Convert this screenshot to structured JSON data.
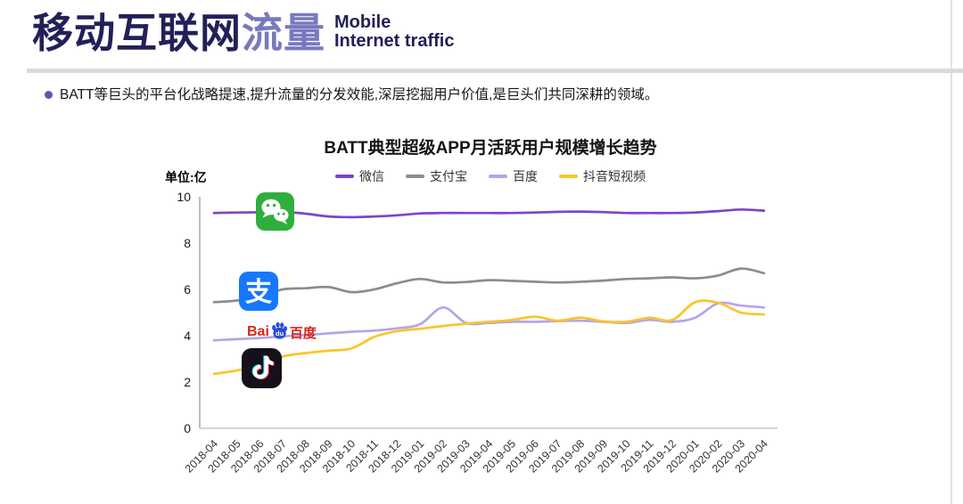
{
  "header": {
    "title_cn_dark": "移动互联网",
    "title_cn_accent": "流量",
    "title_en_line1": "Mobile",
    "title_en_line2": "Internet traffic"
  },
  "bullet": {
    "text": "BATT等巨头的平台化战略提速,提升流量的分发效能,深层挖掘用户价值,是巨头们共同深耕的领域。"
  },
  "colors": {
    "title_dark": "#232058",
    "title_accent": "#7779BF",
    "divider": "#DADADA",
    "bullet_dot": "#5E56AD",
    "axis": "#9B9B9B",
    "tick_text": "#333333"
  },
  "icon_labels": {
    "alipay_glyph": "支",
    "baidu_bai": "Bai",
    "baidu_du": "du",
    "baidu_cn": "百度"
  },
  "chart_data": {
    "type": "line",
    "title": "BATT典型超级APP月活跃用户规模增长趋势",
    "unit_label": "单位:亿",
    "xlabel": "",
    "ylabel": "",
    "ylim": [
      0,
      10
    ],
    "yticks": [
      0,
      2,
      4,
      6,
      8,
      10
    ],
    "grid": false,
    "legend_position": "top-center",
    "x": [
      "2018-04",
      "2018-05",
      "2018-06",
      "2018-07",
      "2018-08",
      "2018-09",
      "2018-10",
      "2018-11",
      "2018-12",
      "2019-01",
      "2019-02",
      "2019-03",
      "2019-04",
      "2019-05",
      "2019-06",
      "2019-07",
      "2019-08",
      "2019-09",
      "2019-10",
      "2019-11",
      "2019-12",
      "2020-01",
      "2020-02",
      "2020-03",
      "2020-04"
    ],
    "series": [
      {
        "key": "wechat",
        "name": "微信",
        "color": "#7D44CB",
        "values": [
          9.3,
          9.32,
          9.33,
          9.35,
          9.27,
          9.15,
          9.12,
          9.15,
          9.2,
          9.28,
          9.3,
          9.3,
          9.3,
          9.3,
          9.32,
          9.35,
          9.36,
          9.34,
          9.3,
          9.3,
          9.3,
          9.32,
          9.38,
          9.45,
          9.4
        ]
      },
      {
        "key": "alipay",
        "name": "支付宝",
        "color": "#8C8C8C",
        "values": [
          5.45,
          5.52,
          5.72,
          6.0,
          6.05,
          6.1,
          5.88,
          6.0,
          6.27,
          6.45,
          6.3,
          6.32,
          6.4,
          6.37,
          6.33,
          6.3,
          6.33,
          6.38,
          6.45,
          6.48,
          6.52,
          6.48,
          6.6,
          6.9,
          6.7
        ]
      },
      {
        "key": "baidu",
        "name": "百度",
        "color": "#B3A5E9",
        "values": [
          3.8,
          3.85,
          3.9,
          3.97,
          4.03,
          4.1,
          4.17,
          4.22,
          4.32,
          4.5,
          5.22,
          4.55,
          4.55,
          4.6,
          4.6,
          4.63,
          4.65,
          4.6,
          4.55,
          4.68,
          4.6,
          4.78,
          5.4,
          5.3,
          5.22
        ]
      },
      {
        "key": "douyin",
        "name": "抖音短视频",
        "color": "#FBC42C",
        "values": [
          2.35,
          2.5,
          2.72,
          3.1,
          3.25,
          3.35,
          3.45,
          3.95,
          4.2,
          4.3,
          4.42,
          4.52,
          4.6,
          4.68,
          4.82,
          4.65,
          4.78,
          4.62,
          4.6,
          4.78,
          4.68,
          5.45,
          5.42,
          5.0,
          4.92
        ]
      }
    ]
  }
}
